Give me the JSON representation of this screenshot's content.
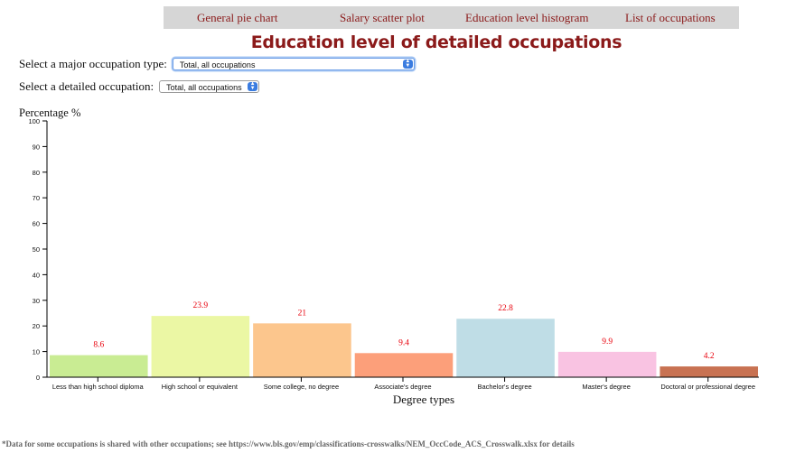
{
  "nav": {
    "items": [
      "General pie chart",
      "Salary scatter plot",
      "Education level histogram",
      "List of occupations"
    ]
  },
  "page_title": "Education level of detailed occupations",
  "controls": {
    "major_label": "Select a major occupation type:",
    "major_value": "Total, all occupations",
    "detailed_label": "Select a detailed occupation:",
    "detailed_value": "Total, all occupations"
  },
  "footnote": "*Data for some occupations is shared with other occupations; see https://www.bls.gov/emp/classifications-crosswalks/NEM_OccCode_ACS_Crosswalk.xlsx for details",
  "chart_data": {
    "type": "bar",
    "ylabel": "Percentage %",
    "xlabel": "Degree types",
    "ylim": [
      0,
      100
    ],
    "yticks": [
      0,
      10,
      20,
      30,
      40,
      50,
      60,
      70,
      80,
      90,
      100
    ],
    "categories": [
      "Less than high school diploma",
      "High school or equivalent",
      "Some college, no degree",
      "Associate's degree",
      "Bachelor's degree",
      "Master's degree",
      "Doctoral or professional degree"
    ],
    "values": [
      8.6,
      23.9,
      21,
      9.4,
      22.8,
      9.9,
      4.2
    ],
    "value_labels": [
      "8.6",
      "23.9",
      "21",
      "9.4",
      "22.8",
      "9.9",
      "4.2"
    ],
    "colors": [
      "#c9ec93",
      "#ebf7a4",
      "#fcc68d",
      "#fc9f7a",
      "#bfdde6",
      "#f9c3e2",
      "#c87252"
    ],
    "label_color": "#e8000b",
    "grid": false
  }
}
